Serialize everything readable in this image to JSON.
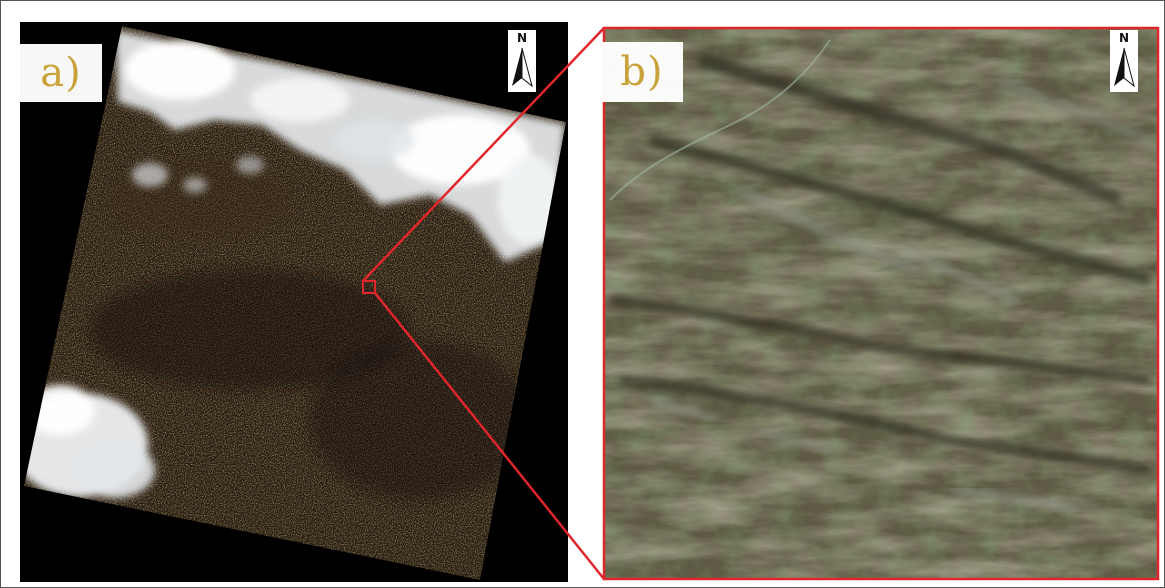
{
  "panels": {
    "a": {
      "label": "a)",
      "north_label": "N"
    },
    "b": {
      "label": "b)",
      "north_label": "N"
    }
  },
  "colors": {
    "label_text": "#c9a23a",
    "zoom_box": "#e0262b",
    "background_fill": "#000000"
  },
  "icons": {
    "north_arrow": "north-arrow-icon"
  }
}
